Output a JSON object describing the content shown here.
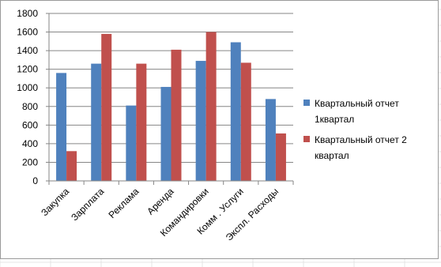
{
  "chart_data": {
    "type": "bar",
    "categories": [
      "Закупка",
      "Зарплата",
      "Реклама",
      "Аренда",
      "Командировки",
      "Комм . Услуги",
      "Экспл. Расходы"
    ],
    "series": [
      {
        "name": "Квартальный отчет 1квартал",
        "legend_lines": [
          "Квартальный отчет",
          "1квартал"
        ],
        "color": "#4f81bd",
        "values": [
          1160,
          1260,
          810,
          1010,
          1290,
          1490,
          880
        ]
      },
      {
        "name": "Квартальный отчет 2 квартал",
        "legend_lines": [
          "Квартальный отчет 2",
          "квартал"
        ],
        "color": "#c0504d",
        "values": [
          320,
          1580,
          1260,
          1410,
          1600,
          1270,
          510
        ]
      }
    ],
    "y_ticks": [
      "0",
      "200",
      "400",
      "600",
      "800",
      "1000",
      "1200",
      "1400",
      "1600",
      "1800"
    ],
    "ylim": [
      0,
      1800
    ],
    "grid": true,
    "legend": "right",
    "title": "",
    "xlabel": "",
    "ylabel": ""
  }
}
